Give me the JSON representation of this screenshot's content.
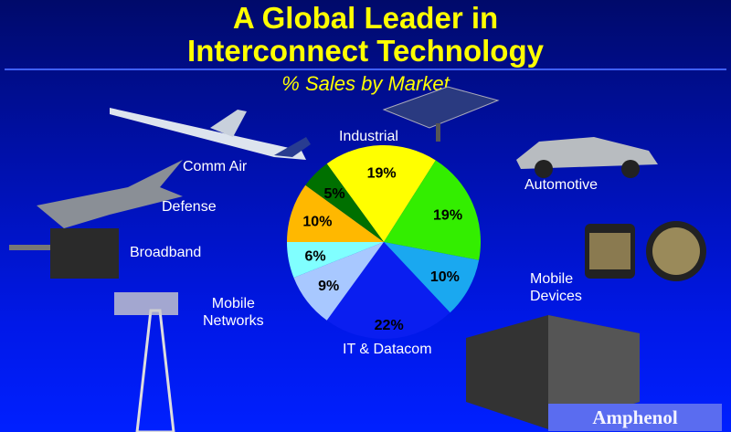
{
  "title_line1": "A Global Leader in",
  "title_line2": "Interconnect Technology",
  "logo": "Amphenol",
  "chart_data": {
    "type": "pie",
    "title": "% Sales by Market",
    "start_angle_deg": -36,
    "direction": "clockwise",
    "categories": [
      "Industrial",
      "Automotive",
      "Mobile Devices",
      "IT & Datacom",
      "Mobile Networks",
      "Broadband",
      "Defense",
      "Comm Air"
    ],
    "values": [
      19,
      19,
      10,
      22,
      9,
      6,
      10,
      5
    ],
    "data_labels": [
      "19%",
      "19%",
      "10%",
      "22%",
      "9%",
      "6%",
      "10%",
      "5%"
    ],
    "colors": [
      "#ffff00",
      "#33ee00",
      "#1aa8f0",
      "#0a1ef0",
      "#a8c8ff",
      "#80ffff",
      "#ffb800",
      "#007000"
    ]
  },
  "labels": {
    "industrial": "Industrial",
    "automotive": "Automotive",
    "mobile_devices_1": "Mobile",
    "mobile_devices_2": "Devices",
    "it": "IT & Datacom",
    "mobile_networks_1": "Mobile",
    "mobile_networks_2": "Networks",
    "broadband": "Broadband",
    "defense": "Defense",
    "comm_air": "Comm Air"
  }
}
